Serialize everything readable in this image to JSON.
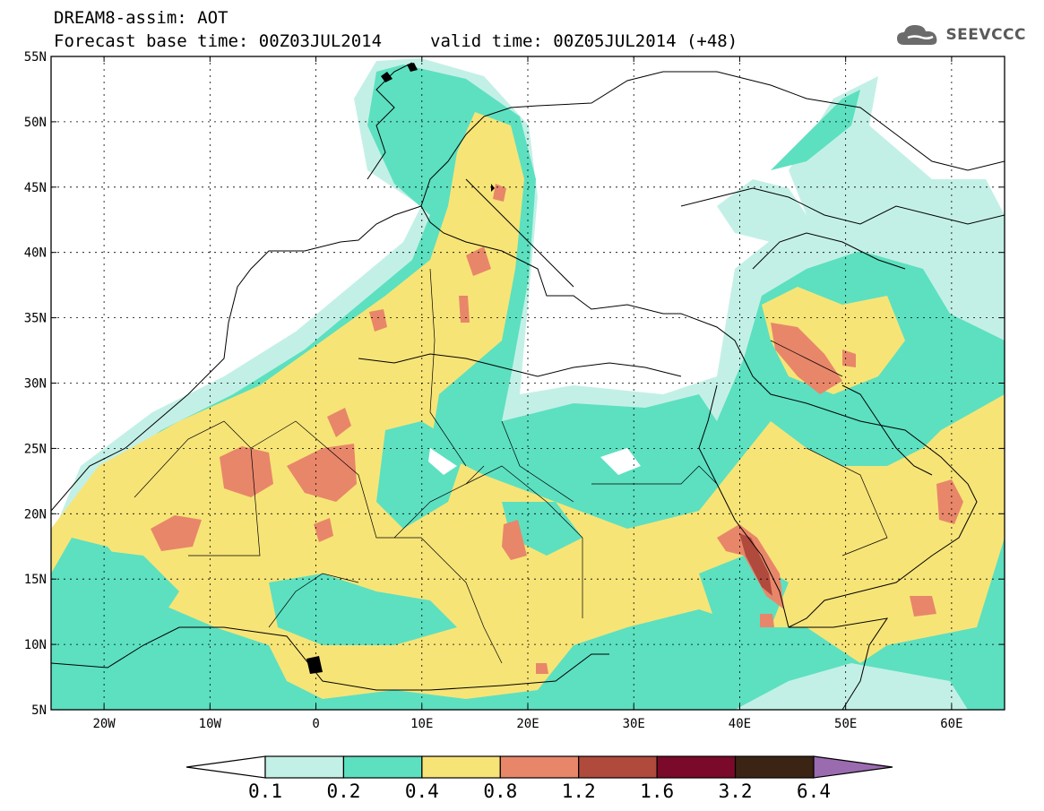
{
  "header": {
    "line1": "DREAM8-assim: AOT",
    "base_time": "Forecast base time: 00Z03JUL2014",
    "valid_time": "valid time: 00Z05JUL2014 (+48)"
  },
  "logo": {
    "text": "SEEVCCC",
    "icon": "cloud-icon"
  },
  "map": {
    "projection": "lat-lon",
    "lon_range": [
      -25,
      65
    ],
    "lat_range": [
      5,
      55
    ],
    "grid": "dotted",
    "lat_ticks": [
      "55N",
      "50N",
      "45N",
      "40N",
      "35N",
      "30N",
      "25N",
      "20N",
      "15N",
      "10N",
      "5N"
    ],
    "lat_tick_values": [
      55,
      50,
      45,
      40,
      35,
      30,
      25,
      20,
      15,
      10,
      5
    ],
    "lon_ticks": [
      "20W",
      "10W",
      "0",
      "10E",
      "20E",
      "30E",
      "40E",
      "50E",
      "60E"
    ],
    "lon_tick_values": [
      -20,
      -10,
      0,
      10,
      20,
      30,
      40,
      50,
      60
    ]
  },
  "colorbar": {
    "labels": [
      "0.1",
      "0.2",
      "0.4",
      "0.8",
      "1.2",
      "1.6",
      "3.2",
      "6.4"
    ],
    "colors": [
      "#ffffff",
      "#c3f0e6",
      "#5ce0c0",
      "#f7e477",
      "#e8866a",
      "#b04a3d",
      "#7b0a2a",
      "#3c2415",
      "#9b6bb0"
    ]
  }
}
